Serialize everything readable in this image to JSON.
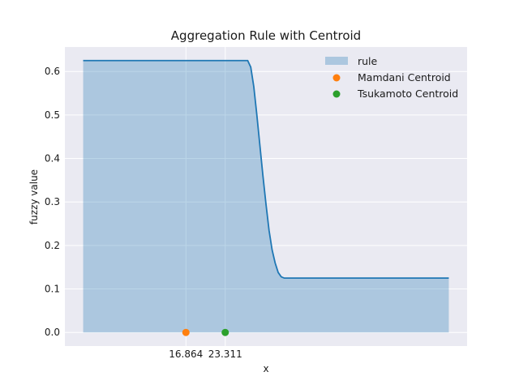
{
  "chart_data": {
    "type": "area",
    "title": "Aggregation Rule with Centroid",
    "xlabel": "x",
    "ylabel": "fuzzy value",
    "xlim": [
      -3.0,
      63.0
    ],
    "ylim": [
      -0.03125,
      0.65625
    ],
    "y_ticks": [
      0.0,
      0.1,
      0.2,
      0.3,
      0.4,
      0.5,
      0.6
    ],
    "y_tick_labels": [
      "0.0",
      "0.1",
      "0.2",
      "0.3",
      "0.4",
      "0.5",
      "0.6"
    ],
    "x_ticks": [
      16.864,
      23.311
    ],
    "x_tick_labels": [
      "16.864",
      "23.311"
    ],
    "grid": true,
    "legend_position": "top-right",
    "series": [
      {
        "name": "rule",
        "kind": "area",
        "color": "#1f77b4",
        "x": [
          0,
          27,
          27.5,
          28,
          28.5,
          29,
          29.5,
          30,
          30.5,
          31,
          31.5,
          32,
          32.5,
          33,
          60
        ],
        "y": [
          0.625,
          0.625,
          0.61,
          0.565,
          0.5,
          0.43,
          0.36,
          0.295,
          0.235,
          0.19,
          0.16,
          0.138,
          0.128,
          0.125,
          0.125
        ]
      },
      {
        "name": "Mamdani Centroid",
        "kind": "scatter",
        "color": "#ff7f0e",
        "x": [
          16.864
        ],
        "y": [
          0.0
        ]
      },
      {
        "name": "Tsukamoto Centroid",
        "kind": "scatter",
        "color": "#2ca02c",
        "x": [
          23.311
        ],
        "y": [
          0.0
        ]
      }
    ]
  }
}
